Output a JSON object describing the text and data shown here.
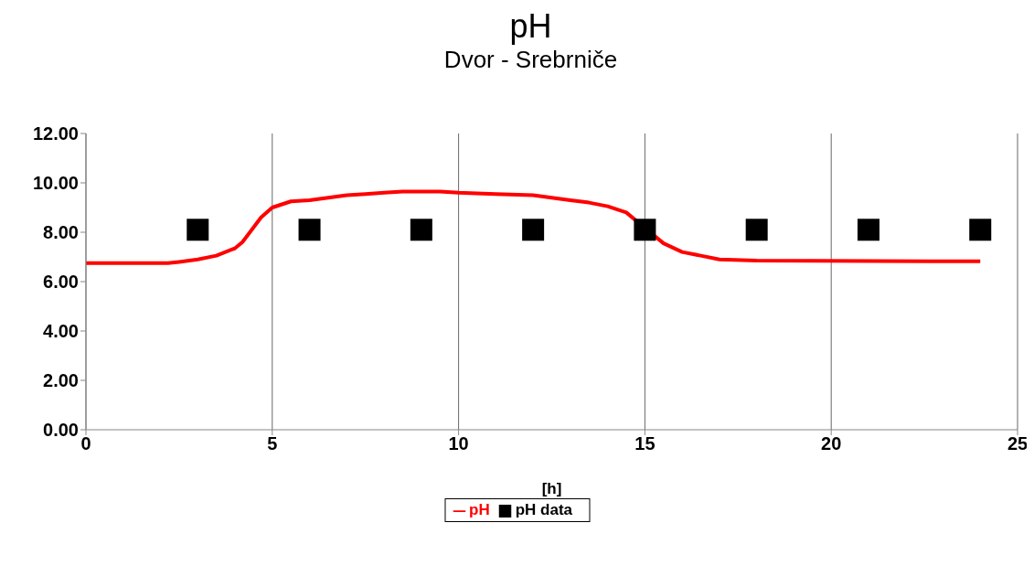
{
  "chart_data": {
    "type": "line",
    "title": "pH",
    "subtitle": "Dvor - Srebrniče",
    "xlabel": "[h]",
    "xlim": [
      0,
      25
    ],
    "xticks": [
      0,
      5,
      10,
      15,
      20,
      25
    ],
    "ylim": [
      0,
      12
    ],
    "yticks": [
      {
        "value": 0,
        "label": "0.00"
      },
      {
        "value": 2,
        "label": "2.00"
      },
      {
        "value": 4,
        "label": "4.00"
      },
      {
        "value": 6,
        "label": "6.00"
      },
      {
        "value": 8,
        "label": "8.00"
      },
      {
        "value": 10,
        "label": "10.00"
      },
      {
        "value": 12,
        "label": "12.00"
      }
    ],
    "grid": "x",
    "legend": "bottom",
    "series": [
      {
        "name": "pH",
        "color": "#ff0000",
        "marker": "none",
        "line_style": "solid",
        "x": [
          0,
          1,
          2,
          2.2,
          2.5,
          3,
          3.5,
          4,
          4.2,
          4.7,
          5,
          5.5,
          6,
          6.5,
          7,
          7.5,
          8,
          8.5,
          9.5,
          10,
          11,
          12,
          12.5,
          13,
          13.5,
          14,
          14.5,
          15.5,
          16,
          16.5,
          17,
          18,
          24
        ],
        "values": [
          6.75,
          6.75,
          6.75,
          6.75,
          6.8,
          6.9,
          7.05,
          7.35,
          7.6,
          8.6,
          9.0,
          9.25,
          9.3,
          9.4,
          9.5,
          9.55,
          9.6,
          9.65,
          9.65,
          9.6,
          9.55,
          9.5,
          9.4,
          9.3,
          9.2,
          9.05,
          8.8,
          7.55,
          7.2,
          7.05,
          6.9,
          6.85,
          6.82
        ]
      },
      {
        "name": "pH data",
        "type": "scatter",
        "color": "#000000",
        "marker": "square",
        "x": [
          3,
          6,
          9,
          12,
          15,
          18,
          21,
          24
        ],
        "values": [
          8.1,
          8.1,
          8.1,
          8.1,
          8.1,
          8.1,
          8.1,
          8.1
        ]
      }
    ]
  }
}
